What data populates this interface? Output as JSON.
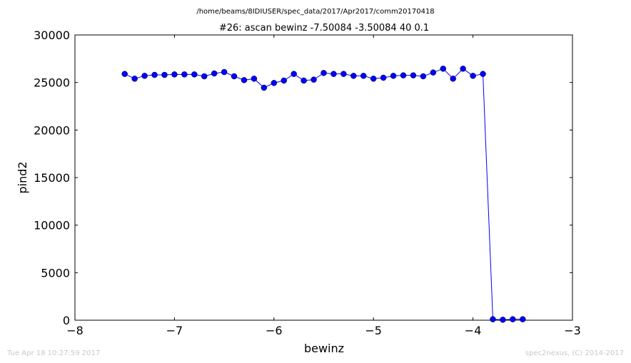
{
  "header": {
    "file_path": "/home/beams/8IDIUSER/spec_data/2017/Apr2017/comm20170418"
  },
  "footer": {
    "timestamp": "Tue Apr 18 10:27:59 2017",
    "credit": "spec2nexus, (C) 2014-2017"
  },
  "chart_data": {
    "type": "line",
    "title": "#26: ascan  bewinz -7.50084 -3.50084  40 0.1",
    "xlabel": "bewinz",
    "ylabel": "pind2",
    "xlim": [
      -8,
      -3
    ],
    "ylim": [
      0,
      30000
    ],
    "xticks": [
      -8,
      -7,
      -6,
      -5,
      -4,
      -3
    ],
    "xtick_labels": [
      "−8",
      "−7",
      "−6",
      "−5",
      "−4",
      "−3"
    ],
    "yticks": [
      0,
      5000,
      10000,
      15000,
      20000,
      25000,
      30000
    ],
    "ytick_labels": [
      "0",
      "5000",
      "10000",
      "15000",
      "20000",
      "25000",
      "30000"
    ],
    "grid": false,
    "series": [
      {
        "color": "#0000ff",
        "marker": "circle",
        "x": [
          -7.5,
          -7.4,
          -7.3,
          -7.2,
          -7.1,
          -7.0,
          -6.9,
          -6.8,
          -6.7,
          -6.6,
          -6.5,
          -6.4,
          -6.3,
          -6.2,
          -6.1,
          -6.0,
          -5.9,
          -5.8,
          -5.7,
          -5.6,
          -5.5,
          -5.4,
          -5.3,
          -5.2,
          -5.1,
          -5.0,
          -4.9,
          -4.8,
          -4.7,
          -4.6,
          -4.5,
          -4.4,
          -4.3,
          -4.2,
          -4.1,
          -4.0,
          -3.9,
          -3.8,
          -3.7,
          -3.6,
          -3.5
        ],
        "y": [
          25900,
          25400,
          25700,
          25800,
          25800,
          25850,
          25850,
          25850,
          25650,
          25950,
          26100,
          25650,
          25250,
          25400,
          24450,
          24950,
          25200,
          25900,
          25200,
          25300,
          26000,
          25900,
          25900,
          25700,
          25700,
          25400,
          25500,
          25700,
          25750,
          25750,
          25650,
          26050,
          26450,
          25400,
          26450,
          25700,
          25900,
          100,
          50,
          100,
          100
        ]
      }
    ]
  }
}
